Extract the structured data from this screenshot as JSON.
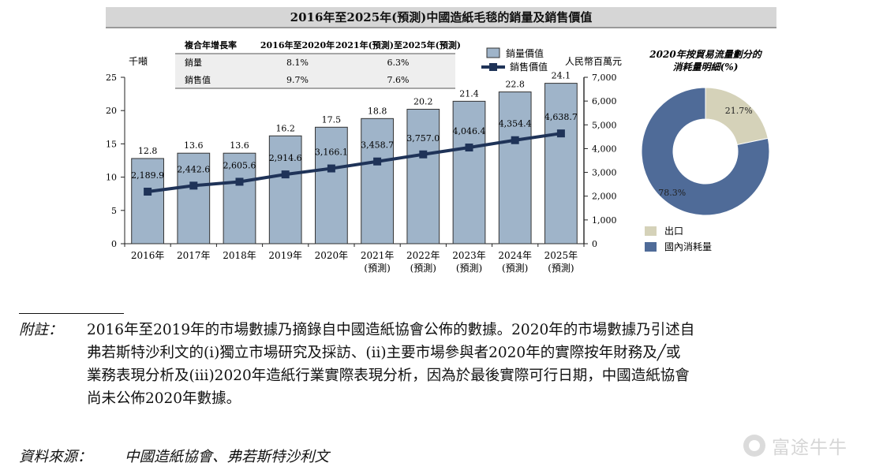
{
  "chart_data": [
    {
      "type": "bar+line",
      "title": "2016年至2025年(預測)中國造紙毛毯的銷量及銷售價值",
      "categories": [
        "2016年",
        "2017年",
        "2018年",
        "2019年",
        "2020年",
        "2021年\n(預測)",
        "2022年\n(預測)",
        "2023年\n(預測)",
        "2024年\n(預測)",
        "2025年\n(預測)"
      ],
      "left_axis": {
        "unit": "千噸",
        "min": 0,
        "max": 25,
        "ticks": [
          "0",
          "5",
          "10",
          "15",
          "20",
          "25"
        ]
      },
      "right_axis": {
        "unit": "人民幣百萬元",
        "min": 0,
        "max": 7000,
        "ticks": [
          "0",
          "1,000",
          "2,000",
          "3,000",
          "4,000",
          "5,000",
          "6,000",
          "7,000"
        ]
      },
      "series": [
        {
          "name": "銷量價值",
          "type": "bar",
          "axis": "left",
          "values": [
            12.8,
            13.6,
            13.6,
            16.2,
            17.5,
            18.8,
            20.2,
            21.4,
            22.8,
            24.1
          ],
          "labels": [
            "12.8",
            "13.6",
            "13.6",
            "16.2",
            "17.5",
            "18.8",
            "20.2",
            "21.4",
            "22.8",
            "24.1"
          ],
          "color": "#9fb4c9"
        },
        {
          "name": "銷售價值",
          "type": "line",
          "axis": "right",
          "values": [
            2189.9,
            2442.6,
            2605.6,
            2914.6,
            3166.1,
            3458.7,
            3757.0,
            4046.4,
            4354.4,
            4638.7
          ],
          "labels": [
            "2,189.9",
            "2,442.6",
            "2,605.6",
            "2,914.6",
            "3,166.1",
            "3,458.7",
            "3,757.0",
            "4,046.4",
            "4,354.4",
            "4,638.7"
          ],
          "color": "#1f3358"
        }
      ],
      "cagr_table": {
        "headers": [
          "複合年增長率",
          "2016年至2020年",
          "2021年(預測)至2025年(預測)"
        ],
        "rows": [
          [
            "銷量",
            "8.1%",
            "6.3%"
          ],
          [
            "銷售值",
            "9.7%",
            "7.6%"
          ]
        ]
      }
    },
    {
      "type": "pie",
      "title": "2020年按貿易流量劃分的消耗量明細(%)",
      "slices": [
        {
          "name": "出口",
          "value": 21.7,
          "label": "21.7%",
          "color": "#d5d2b9"
        },
        {
          "name": "國內消耗量",
          "value": 78.3,
          "label": "78.3%",
          "color": "#4f6b98"
        }
      ]
    }
  ],
  "footnote": {
    "label": "附註：",
    "lines": [
      "2016年至2019年的市場數據乃摘錄自中國造紙協會公佈的數據。2020年的市場數據乃引述自",
      "弗若斯特沙利文的(i)獨立市場研究及採訪、(ii)主要市場參與者2020年的實際按年財務及╱或",
      "業務表現分析及(iii)2020年造紙行業實際表現分析，因為於最後實際可行日期，中國造紙協會",
      "尚未公佈2020年數據。"
    ]
  },
  "source": {
    "label": "資料來源：",
    "text": "中國造紙協會、弗若斯特沙利文"
  },
  "watermark": {
    "text": "富途牛牛"
  }
}
